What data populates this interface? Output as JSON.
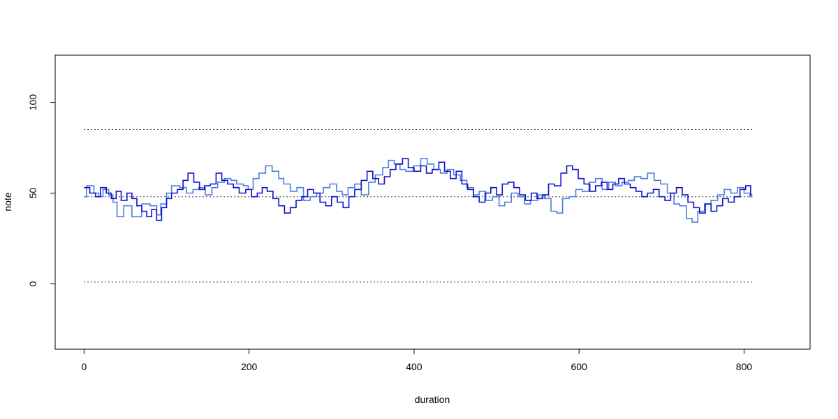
{
  "chart_data": {
    "type": "line",
    "style": "step",
    "title": "",
    "xlabel": "duration",
    "ylabel": "note",
    "xlim": [
      -35,
      880
    ],
    "ylim": [
      -36,
      126
    ],
    "xticks": [
      0,
      200,
      400,
      600,
      800
    ],
    "yticks": [
      0,
      50,
      100
    ],
    "grid": false,
    "legend": "none",
    "reference_lines": [
      {
        "y": 85,
        "x_range": [
          0,
          810
        ],
        "style": "dotted",
        "color": "#000000"
      },
      {
        "y": 48,
        "x_range": [
          0,
          810
        ],
        "style": "dotted",
        "color": "#000000"
      },
      {
        "y": 1,
        "x_range": [
          0,
          810
        ],
        "style": "dotted",
        "color": "#000000"
      }
    ],
    "series": [
      {
        "color": "#4a7fdc",
        "points": [
          [
            0,
            48
          ],
          [
            3,
            54
          ],
          [
            12,
            50
          ],
          [
            18,
            48
          ],
          [
            23,
            52
          ],
          [
            30,
            49
          ],
          [
            35,
            45
          ],
          [
            40,
            37
          ],
          [
            48,
            43
          ],
          [
            58,
            37
          ],
          [
            70,
            44
          ],
          [
            80,
            43
          ],
          [
            88,
            38
          ],
          [
            93,
            44
          ],
          [
            100,
            50
          ],
          [
            106,
            54
          ],
          [
            116,
            53
          ],
          [
            124,
            50
          ],
          [
            132,
            52
          ],
          [
            139,
            53
          ],
          [
            147,
            49
          ],
          [
            155,
            53
          ],
          [
            162,
            56
          ],
          [
            170,
            58
          ],
          [
            178,
            57
          ],
          [
            185,
            55
          ],
          [
            193,
            54
          ],
          [
            199,
            52
          ],
          [
            205,
            58
          ],
          [
            212,
            61
          ],
          [
            220,
            65
          ],
          [
            228,
            62
          ],
          [
            236,
            58
          ],
          [
            242,
            55
          ],
          [
            250,
            51
          ],
          [
            258,
            53
          ],
          [
            266,
            46
          ],
          [
            274,
            48
          ],
          [
            282,
            50
          ],
          [
            290,
            53
          ],
          [
            298,
            55
          ],
          [
            306,
            51
          ],
          [
            313,
            49
          ],
          [
            320,
            53
          ],
          [
            328,
            55
          ],
          [
            336,
            49
          ],
          [
            345,
            56
          ],
          [
            353,
            60
          ],
          [
            362,
            64
          ],
          [
            369,
            68
          ],
          [
            376,
            66
          ],
          [
            383,
            63
          ],
          [
            390,
            62
          ],
          [
            399,
            65
          ],
          [
            408,
            69
          ],
          [
            416,
            66
          ],
          [
            424,
            63
          ],
          [
            432,
            61
          ],
          [
            440,
            63
          ],
          [
            448,
            60
          ],
          [
            456,
            57
          ],
          [
            464,
            53
          ],
          [
            472,
            49
          ],
          [
            479,
            51
          ],
          [
            487,
            46
          ],
          [
            495,
            48
          ],
          [
            503,
            43
          ],
          [
            510,
            45
          ],
          [
            518,
            50
          ],
          [
            526,
            48
          ],
          [
            534,
            44
          ],
          [
            541,
            46
          ],
          [
            550,
            49
          ],
          [
            558,
            47
          ],
          [
            566,
            40
          ],
          [
            573,
            39
          ],
          [
            580,
            47
          ],
          [
            588,
            48
          ],
          [
            596,
            52
          ],
          [
            604,
            51
          ],
          [
            612,
            56
          ],
          [
            620,
            58
          ],
          [
            628,
            52
          ],
          [
            636,
            56
          ],
          [
            644,
            54
          ],
          [
            652,
            56
          ],
          [
            660,
            57
          ],
          [
            667,
            59
          ],
          [
            675,
            58
          ],
          [
            683,
            61
          ],
          [
            691,
            57
          ],
          [
            699,
            55
          ],
          [
            707,
            50
          ],
          [
            715,
            44
          ],
          [
            722,
            43
          ],
          [
            730,
            36
          ],
          [
            737,
            34
          ],
          [
            744,
            40
          ],
          [
            752,
            44
          ],
          [
            760,
            46
          ],
          [
            768,
            49
          ],
          [
            776,
            52
          ],
          [
            784,
            50
          ],
          [
            792,
            53
          ],
          [
            800,
            50
          ],
          [
            807,
            48
          ]
        ]
      },
      {
        "color": "#1010cc",
        "points": [
          [
            0,
            53
          ],
          [
            7,
            50
          ],
          [
            14,
            48
          ],
          [
            20,
            53
          ],
          [
            27,
            50
          ],
          [
            33,
            47
          ],
          [
            39,
            51
          ],
          [
            45,
            46
          ],
          [
            52,
            50
          ],
          [
            58,
            47
          ],
          [
            64,
            43
          ],
          [
            70,
            40
          ],
          [
            76,
            37
          ],
          [
            82,
            41
          ],
          [
            88,
            35
          ],
          [
            94,
            42
          ],
          [
            100,
            47
          ],
          [
            106,
            50
          ],
          [
            113,
            52
          ],
          [
            120,
            57
          ],
          [
            126,
            61
          ],
          [
            133,
            56
          ],
          [
            140,
            52
          ],
          [
            146,
            54
          ],
          [
            153,
            55
          ],
          [
            160,
            61
          ],
          [
            167,
            57
          ],
          [
            174,
            55
          ],
          [
            181,
            53
          ],
          [
            188,
            50
          ],
          [
            196,
            52
          ],
          [
            203,
            48
          ],
          [
            210,
            50
          ],
          [
            216,
            53
          ],
          [
            222,
            51
          ],
          [
            229,
            47
          ],
          [
            236,
            43
          ],
          [
            243,
            39
          ],
          [
            250,
            42
          ],
          [
            257,
            46
          ],
          [
            264,
            48
          ],
          [
            271,
            52
          ],
          [
            278,
            50
          ],
          [
            286,
            45
          ],
          [
            293,
            43
          ],
          [
            300,
            48
          ],
          [
            307,
            45
          ],
          [
            314,
            42
          ],
          [
            321,
            48
          ],
          [
            328,
            52
          ],
          [
            336,
            57
          ],
          [
            343,
            62
          ],
          [
            350,
            58
          ],
          [
            357,
            55
          ],
          [
            364,
            59
          ],
          [
            371,
            63
          ],
          [
            378,
            66
          ],
          [
            386,
            69
          ],
          [
            393,
            64
          ],
          [
            400,
            62
          ],
          [
            408,
            65
          ],
          [
            415,
            61
          ],
          [
            422,
            63
          ],
          [
            430,
            67
          ],
          [
            437,
            62
          ],
          [
            444,
            58
          ],
          [
            451,
            62
          ],
          [
            458,
            55
          ],
          [
            465,
            52
          ],
          [
            472,
            48
          ],
          [
            479,
            45
          ],
          [
            486,
            50
          ],
          [
            493,
            53
          ],
          [
            500,
            49
          ],
          [
            507,
            55
          ],
          [
            514,
            56
          ],
          [
            521,
            53
          ],
          [
            528,
            49
          ],
          [
            535,
            46
          ],
          [
            542,
            50
          ],
          [
            549,
            47
          ],
          [
            556,
            49
          ],
          [
            563,
            55
          ],
          [
            570,
            54
          ],
          [
            578,
            61
          ],
          [
            585,
            65
          ],
          [
            592,
            63
          ],
          [
            599,
            58
          ],
          [
            606,
            55
          ],
          [
            613,
            51
          ],
          [
            620,
            54
          ],
          [
            627,
            56
          ],
          [
            634,
            52
          ],
          [
            641,
            55
          ],
          [
            648,
            58
          ],
          [
            655,
            55
          ],
          [
            662,
            53
          ],
          [
            669,
            51
          ],
          [
            676,
            48
          ],
          [
            683,
            50
          ],
          [
            690,
            52
          ],
          [
            697,
            48
          ],
          [
            704,
            46
          ],
          [
            711,
            50
          ],
          [
            718,
            53
          ],
          [
            725,
            49
          ],
          [
            732,
            45
          ],
          [
            739,
            42
          ],
          [
            746,
            39
          ],
          [
            753,
            44
          ],
          [
            760,
            40
          ],
          [
            767,
            43
          ],
          [
            774,
            47
          ],
          [
            781,
            45
          ],
          [
            788,
            48
          ],
          [
            795,
            52
          ],
          [
            802,
            54
          ],
          [
            808,
            49
          ]
        ]
      }
    ]
  }
}
